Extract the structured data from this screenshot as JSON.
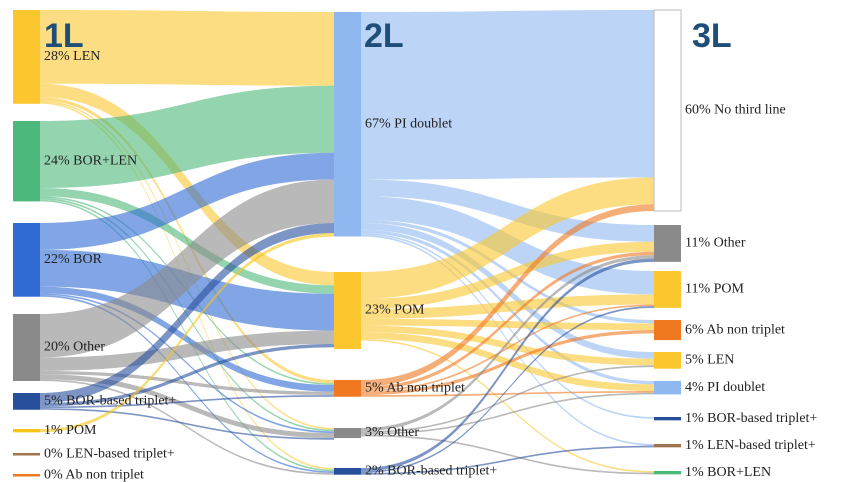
{
  "chart_data": {
    "type": "sankey",
    "columns": [
      {
        "title": "1L",
        "nodes": [
          {
            "label": "28% LEN",
            "value": 28,
            "color": "#fcc72e"
          },
          {
            "label": "24% BOR+LEN",
            "value": 24,
            "color": "#4cb87a"
          },
          {
            "label": "22% BOR",
            "value": 22,
            "color": "#2f6bd3"
          },
          {
            "label": "20% Other",
            "value": 20,
            "color": "#8a8a8a"
          },
          {
            "label": "5% BOR-based triplet+",
            "value": 5,
            "color": "#274f9c"
          },
          {
            "label": "1% POM",
            "value": 1,
            "color": "#f5c518"
          },
          {
            "label": "0% LEN-based triplet+",
            "value": 0,
            "color": "#a0744f"
          },
          {
            "label": "0% Ab non triplet",
            "value": 0,
            "color": "#f07820"
          }
        ]
      },
      {
        "title": "2L",
        "nodes": [
          {
            "label": "67% PI doublet",
            "value": 67,
            "color": "#8fb8f0"
          },
          {
            "label": "23% POM",
            "value": 23,
            "color": "#fcc72e"
          },
          {
            "label": "5% Ab non triplet",
            "value": 5,
            "color": "#f07820"
          },
          {
            "label": "3% Other",
            "value": 3,
            "color": "#8a8a8a"
          },
          {
            "label": "2% BOR-based triplet+",
            "value": 2,
            "color": "#274f9c"
          }
        ]
      },
      {
        "title": "3L",
        "nodes": [
          {
            "label": "60% No third line",
            "value": 60,
            "color": "#ffffff"
          },
          {
            "label": "11% Other",
            "value": 11,
            "color": "#8a8a8a"
          },
          {
            "label": "11% POM",
            "value": 11,
            "color": "#fcc72e"
          },
          {
            "label": "6% Ab non triplet",
            "value": 6,
            "color": "#f07820"
          },
          {
            "label": "5% LEN",
            "value": 5,
            "color": "#fcc72e"
          },
          {
            "label": "4% PI doublet",
            "value": 4,
            "color": "#8fb8f0"
          },
          {
            "label": "1% BOR-based triplet+",
            "value": 1,
            "color": "#274f9c"
          },
          {
            "label": "1% LEN-based triplet+",
            "value": 1,
            "color": "#a0744f"
          },
          {
            "label": "1% BOR+LEN",
            "value": 1,
            "color": "#4cb87a"
          }
        ]
      }
    ],
    "links": [
      {
        "from": "28% LEN",
        "to": "67% PI doublet",
        "value": 22
      },
      {
        "from": "28% LEN",
        "to": "23% POM",
        "value": 4
      },
      {
        "from": "28% LEN",
        "to": "5% Ab non triplet",
        "value": 1
      },
      {
        "from": "28% LEN",
        "to": "3% Other",
        "value": 0.5
      },
      {
        "from": "28% LEN",
        "to": "2% BOR-based triplet+",
        "value": 0.5
      },
      {
        "from": "24% BOR+LEN",
        "to": "67% PI doublet",
        "value": 20
      },
      {
        "from": "24% BOR+LEN",
        "to": "23% POM",
        "value": 2.5
      },
      {
        "from": "24% BOR+LEN",
        "to": "5% Ab non triplet",
        "value": 0.5
      },
      {
        "from": "24% BOR+LEN",
        "to": "3% Other",
        "value": 0.5
      },
      {
        "from": "24% BOR+LEN",
        "to": "2% BOR-based triplet+",
        "value": 0.5
      },
      {
        "from": "22% BOR",
        "to": "67% PI doublet",
        "value": 8
      },
      {
        "from": "22% BOR",
        "to": "23% POM",
        "value": 11
      },
      {
        "from": "22% BOR",
        "to": "5% Ab non triplet",
        "value": 2
      },
      {
        "from": "22% BOR",
        "to": "3% Other",
        "value": 0.5
      },
      {
        "from": "22% BOR",
        "to": "2% BOR-based triplet+",
        "value": 0.5
      },
      {
        "from": "20% Other",
        "to": "67% PI doublet",
        "value": 13
      },
      {
        "from": "20% Other",
        "to": "23% POM",
        "value": 4
      },
      {
        "from": "20% Other",
        "to": "5% Ab non triplet",
        "value": 1
      },
      {
        "from": "20% Other",
        "to": "3% Other",
        "value": 1.5
      },
      {
        "from": "20% Other",
        "to": "2% BOR-based triplet+",
        "value": 0.5
      },
      {
        "from": "5% BOR-based triplet+",
        "to": "67% PI doublet",
        "value": 3
      },
      {
        "from": "5% BOR-based triplet+",
        "to": "23% POM",
        "value": 1
      },
      {
        "from": "5% BOR-based triplet+",
        "to": "5% Ab non triplet",
        "value": 0.5
      },
      {
        "from": "5% BOR-based triplet+",
        "to": "3% Other",
        "value": 0.5
      },
      {
        "from": "1% POM",
        "to": "67% PI doublet",
        "value": 1
      },
      {
        "from": "67% PI doublet",
        "to": "60% No third line",
        "value": 50
      },
      {
        "from": "67% PI doublet",
        "to": "11% Other",
        "value": 5
      },
      {
        "from": "67% PI doublet",
        "to": "11% POM",
        "value": 7
      },
      {
        "from": "67% PI doublet",
        "to": "6% Ab non triplet",
        "value": 1
      },
      {
        "from": "67% PI doublet",
        "to": "5% LEN",
        "value": 2
      },
      {
        "from": "67% PI doublet",
        "to": "4% PI doublet",
        "value": 1
      },
      {
        "from": "67% PI doublet",
        "to": "1% BOR-based triplet+",
        "value": 0.5
      },
      {
        "from": "67% PI doublet",
        "to": "1% LEN-based triplet+",
        "value": 0.5
      },
      {
        "from": "23% POM",
        "to": "60% No third line",
        "value": 8
      },
      {
        "from": "23% POM",
        "to": "11% Other",
        "value": 3
      },
      {
        "from": "23% POM",
        "to": "11% POM",
        "value": 3
      },
      {
        "from": "23% POM",
        "to": "6% Ab non triplet",
        "value": 2
      },
      {
        "from": "23% POM",
        "to": "5% LEN",
        "value": 2
      },
      {
        "from": "23% POM",
        "to": "4% PI doublet",
        "value": 2
      },
      {
        "from": "23% POM",
        "to": "1% BOR+LEN",
        "value": 0.5
      },
      {
        "from": "5% Ab non triplet",
        "to": "60% No third line",
        "value": 2
      },
      {
        "from": "5% Ab non triplet",
        "to": "11% Other",
        "value": 1
      },
      {
        "from": "5% Ab non triplet",
        "to": "11% POM",
        "value": 0.5
      },
      {
        "from": "5% Ab non triplet",
        "to": "6% Ab non triplet",
        "value": 1
      },
      {
        "from": "5% Ab non triplet",
        "to": "4% PI doublet",
        "value": 0.5
      },
      {
        "from": "3% Other",
        "to": "11% Other",
        "value": 1
      },
      {
        "from": "3% Other",
        "to": "5% LEN",
        "value": 0.5
      },
      {
        "from": "3% Other",
        "to": "4% PI doublet",
        "value": 0.5
      },
      {
        "from": "3% Other",
        "to": "1% BOR+LEN",
        "value": 0.5
      },
      {
        "from": "2% BOR-based triplet+",
        "to": "11% Other",
        "value": 1
      },
      {
        "from": "2% BOR-based triplet+",
        "to": "11% POM",
        "value": 0.5
      },
      {
        "from": "2% BOR-based triplet+",
        "to": "1% LEN-based triplet+",
        "value": 0.5
      }
    ]
  }
}
